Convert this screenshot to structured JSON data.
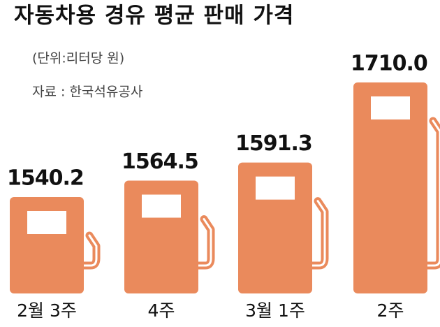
{
  "chart_data": {
    "type": "bar",
    "title": "자동차용 경유 평균 판매 가격",
    "subtitle": "(단위:리터당 원)",
    "source": "자료 : 한국석유공사",
    "categories": [
      "2월 3주",
      "4주",
      "3월 1주",
      "2주"
    ],
    "values": [
      1540.2,
      1564.5,
      1591.3,
      1710.0
    ],
    "value_labels": [
      "1540.2",
      "1564.5",
      "1591.3",
      "1710.0"
    ],
    "color": "#ea8a5c"
  }
}
